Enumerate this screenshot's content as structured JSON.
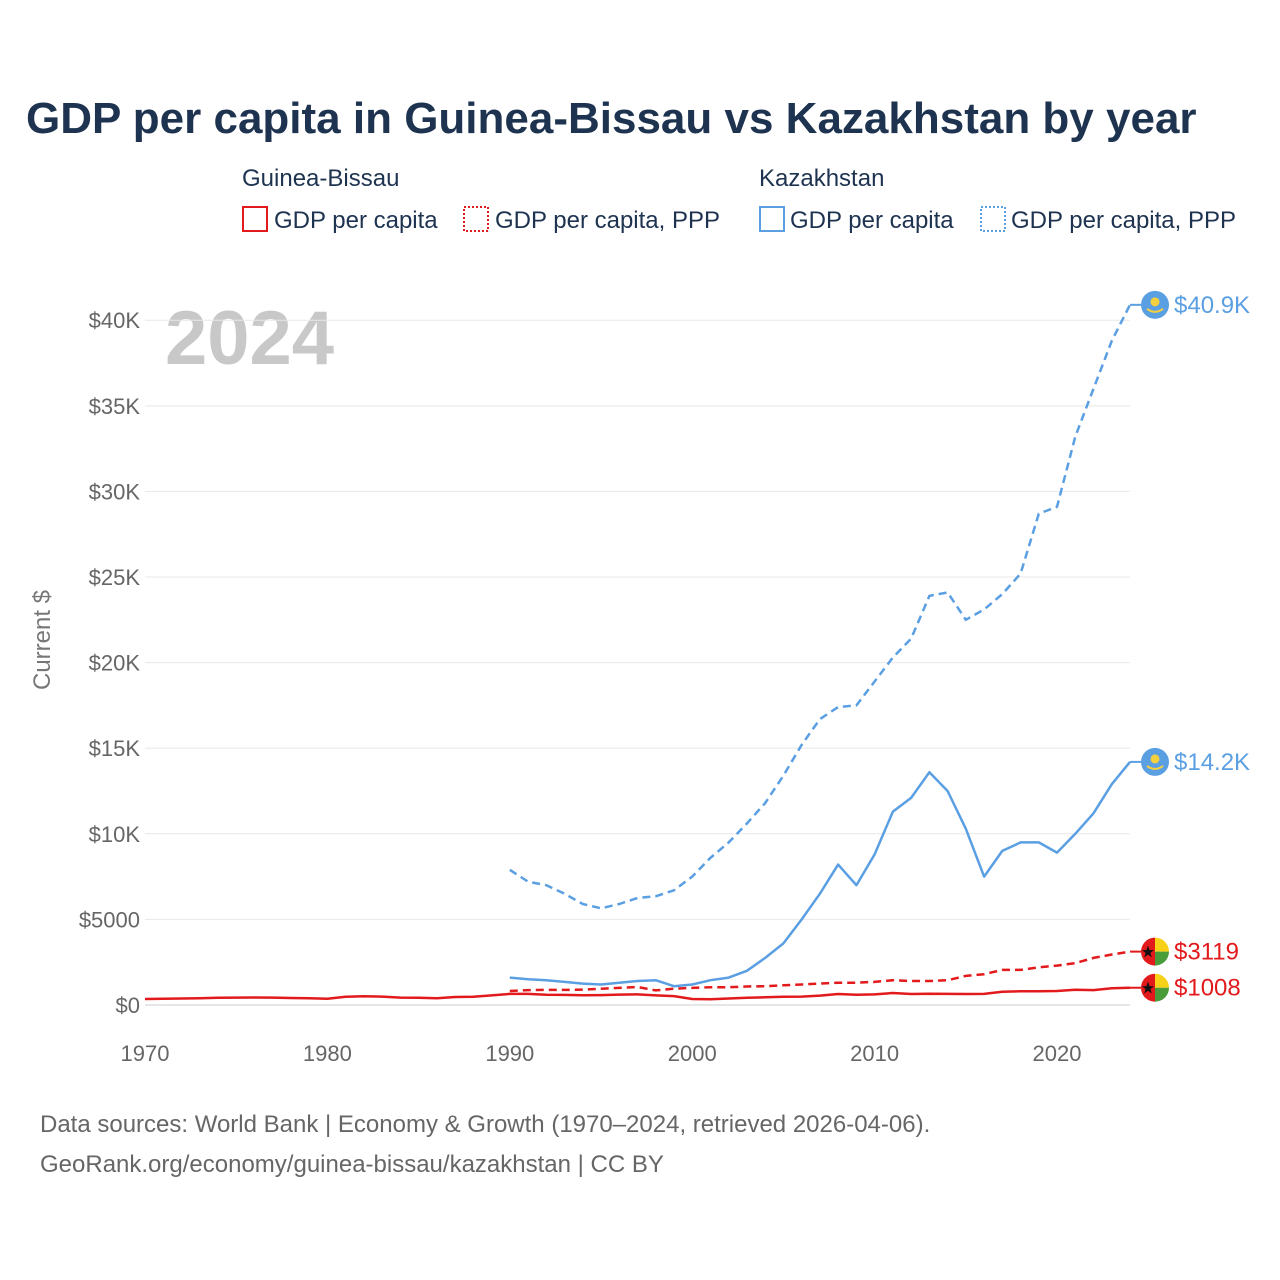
{
  "title": "GDP per capita in Guinea-Bissau vs Kazakhstan by year",
  "year_label": "2024",
  "footer": {
    "line1": "Data sources: World Bank | Economy & Growth (1970–2024, retrieved 2026-04-06).",
    "line2": "GeoRank.org/economy/guinea-bissau/kazakhstan | CC BY"
  },
  "legend": {
    "groups": [
      {
        "name": "Guinea-Bissau",
        "color": "#e31a1c",
        "items": [
          "GDP per capita",
          "GDP per capita, PPP"
        ]
      },
      {
        "name": "Kazakhstan",
        "color": "#5b9fe3",
        "items": [
          "GDP per capita",
          "GDP per capita, PPP"
        ]
      }
    ]
  },
  "chart_data": {
    "type": "line",
    "ylabel": "Current $",
    "xlim": [
      1970,
      2024
    ],
    "ylim": [
      0,
      42000
    ],
    "x_ticks": [
      1970,
      1980,
      1990,
      2000,
      2010,
      2020
    ],
    "y_ticks": [
      {
        "value": 0,
        "label": "$0"
      },
      {
        "value": 5000,
        "label": "$5000"
      },
      {
        "value": 10000,
        "label": "$10K"
      },
      {
        "value": 15000,
        "label": "$15K"
      },
      {
        "value": 20000,
        "label": "$20K"
      },
      {
        "value": 25000,
        "label": "$25K"
      },
      {
        "value": 30000,
        "label": "$30K"
      },
      {
        "value": 35000,
        "label": "$35K"
      },
      {
        "value": 40000,
        "label": "$40K"
      }
    ],
    "series": [
      {
        "name": "Guinea-Bissau GDP per capita",
        "country": "Guinea-Bissau",
        "color": "#e31a1c",
        "dash": "solid",
        "end_label": "$1008",
        "x": [
          1970,
          1971,
          1972,
          1973,
          1974,
          1975,
          1976,
          1977,
          1978,
          1979,
          1980,
          1981,
          1982,
          1983,
          1984,
          1985,
          1986,
          1987,
          1988,
          1989,
          1990,
          1991,
          1992,
          1993,
          1994,
          1995,
          1996,
          1997,
          1998,
          1999,
          2000,
          2001,
          2002,
          2003,
          2004,
          2005,
          2006,
          2007,
          2008,
          2009,
          2010,
          2011,
          2012,
          2013,
          2014,
          2015,
          2016,
          2017,
          2018,
          2019,
          2020,
          2021,
          2022,
          2023,
          2024
        ],
        "y": [
          350,
          360,
          380,
          400,
          420,
          430,
          440,
          430,
          410,
          390,
          360,
          480,
          510,
          490,
          430,
          420,
          400,
          470,
          480,
          560,
          650,
          650,
          600,
          590,
          570,
          580,
          610,
          620,
          560,
          520,
          350,
          340,
          380,
          420,
          450,
          480,
          490,
          550,
          640,
          600,
          620,
          700,
          640,
          660,
          650,
          640,
          650,
          770,
          800,
          800,
          820,
          890,
          870,
          980,
          1008
        ]
      },
      {
        "name": "Guinea-Bissau GDP per capita, PPP",
        "country": "Guinea-Bissau",
        "color": "#e31a1c",
        "dash": "dashed",
        "end_label": "$3119",
        "x": [
          1990,
          1991,
          1992,
          1993,
          1994,
          1995,
          1996,
          1997,
          1998,
          1999,
          2000,
          2001,
          2002,
          2003,
          2004,
          2005,
          2006,
          2007,
          2008,
          2009,
          2010,
          2011,
          2012,
          2013,
          2014,
          2015,
          2016,
          2017,
          2018,
          2019,
          2020,
          2021,
          2022,
          2023,
          2024
        ],
        "y": [
          820,
          870,
          880,
          880,
          900,
          950,
          1000,
          1050,
          850,
          950,
          1000,
          1040,
          1040,
          1080,
          1100,
          1150,
          1200,
          1250,
          1300,
          1300,
          1350,
          1450,
          1400,
          1400,
          1450,
          1700,
          1800,
          2050,
          2050,
          2200,
          2300,
          2450,
          2750,
          2950,
          3119
        ]
      },
      {
        "name": "Kazakhstan GDP per capita",
        "country": "Kazakhstan",
        "color": "#5b9fe3",
        "dash": "solid",
        "end_label": "$14.2K",
        "x": [
          1990,
          1991,
          1992,
          1993,
          1994,
          1995,
          1996,
          1997,
          1998,
          1999,
          2000,
          2001,
          2002,
          2003,
          2004,
          2005,
          2006,
          2007,
          2008,
          2009,
          2010,
          2011,
          2012,
          2013,
          2014,
          2015,
          2016,
          2017,
          2018,
          2019,
          2020,
          2021,
          2022,
          2023,
          2024
        ],
        "y": [
          1600,
          1500,
          1450,
          1350,
          1250,
          1200,
          1300,
          1400,
          1450,
          1100,
          1200,
          1450,
          1600,
          2000,
          2750,
          3600,
          5000,
          6500,
          8200,
          7000,
          8800,
          11300,
          12100,
          13600,
          12500,
          10300,
          7500,
          9000,
          9500,
          9500,
          8900,
          10000,
          11200,
          12900,
          14200
        ]
      },
      {
        "name": "Kazakhstan GDP per capita, PPP",
        "country": "Kazakhstan",
        "color": "#5b9fe3",
        "dash": "dotted",
        "end_label": "$40.9K",
        "x": [
          1990,
          1991,
          1992,
          1993,
          1994,
          1995,
          1996,
          1997,
          1998,
          1999,
          2000,
          2001,
          2002,
          2003,
          2004,
          2005,
          2006,
          2007,
          2008,
          2009,
          2010,
          2011,
          2012,
          2013,
          2014,
          2015,
          2016,
          2017,
          2018,
          2019,
          2020,
          2021,
          2022,
          2023,
          2024
        ],
        "y": [
          7900,
          7200,
          7000,
          6500,
          5900,
          5650,
          5900,
          6250,
          6350,
          6700,
          7500,
          8600,
          9500,
          10600,
          11800,
          13400,
          15200,
          16700,
          17400,
          17500,
          18900,
          20300,
          21400,
          23900,
          24100,
          22500,
          23100,
          24000,
          25200,
          28700,
          29100,
          33200,
          36000,
          38800,
          40900
        ]
      }
    ]
  }
}
